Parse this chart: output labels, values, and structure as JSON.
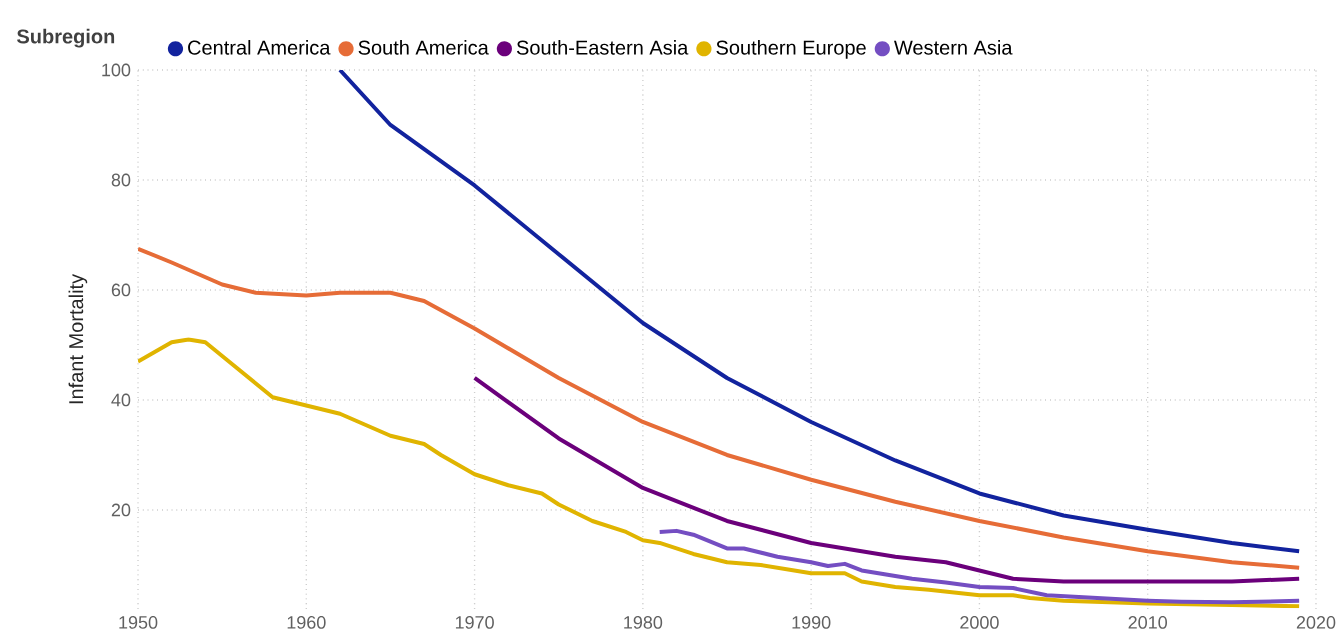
{
  "chart_data": {
    "type": "line",
    "ylabel": "Infant Mortality",
    "legend_title": "Subregion",
    "legend": "top left",
    "grid": true,
    "line_style": "solid",
    "xlim": [
      1950,
      2020
    ],
    "xticks": [
      1950,
      1960,
      1970,
      1980,
      1990,
      2000,
      2010,
      2020
    ],
    "ylim": [
      2,
      100
    ],
    "yticks": [
      20,
      40,
      60,
      80,
      100
    ],
    "series": [
      {
        "name": "Central America",
        "color": "#12239e",
        "x": [
          1962,
          1965,
          1970,
          1975,
          1980,
          1985,
          1990,
          1995,
          2000,
          2005,
          2010,
          2015,
          2019
        ],
        "values": [
          100,
          90,
          79,
          66.5,
          54,
          44,
          36,
          29,
          23,
          19,
          16.4,
          14,
          12.5
        ]
      },
      {
        "name": "South America",
        "color": "#e66c37",
        "x": [
          1950,
          1952,
          1955,
          1957,
          1960,
          1962,
          1965,
          1967,
          1970,
          1975,
          1980,
          1985,
          1990,
          1995,
          2000,
          2005,
          2010,
          2015,
          2019
        ],
        "values": [
          67.5,
          65,
          61,
          59.5,
          59,
          59.5,
          59.5,
          58,
          53,
          44,
          36,
          30,
          25.5,
          21.5,
          18,
          15,
          12.5,
          10.5,
          9.5
        ]
      },
      {
        "name": "South-Eastern Asia",
        "color": "#6b007b",
        "x": [
          1970,
          1975,
          1980,
          1985,
          1990,
          1995,
          1998,
          2000,
          2002,
          2005,
          2010,
          2015,
          2019
        ],
        "values": [
          44,
          33,
          24,
          18,
          14,
          11.5,
          10.5,
          9,
          7.5,
          7,
          7,
          7,
          7.5
        ]
      },
      {
        "name": "Southern Europe",
        "color": "#e0b400",
        "x": [
          1950,
          1952,
          1953,
          1954,
          1955,
          1957,
          1958,
          1960,
          1962,
          1965,
          1967,
          1968,
          1970,
          1972,
          1974,
          1975,
          1977,
          1979,
          1980,
          1981,
          1983,
          1985,
          1987,
          1989,
          1990,
          1992,
          1993,
          1995,
          1997,
          2000,
          2002,
          2003,
          2005,
          2010,
          2015,
          2019
        ],
        "values": [
          47,
          50.5,
          51,
          50.5,
          48,
          43,
          40.5,
          39,
          37.5,
          33.5,
          32,
          30,
          26.5,
          24.5,
          23,
          21,
          18,
          16,
          14.5,
          14,
          12,
          10.5,
          10,
          9,
          8.5,
          8.5,
          7,
          6,
          5.5,
          4.5,
          4.5,
          4,
          3.5,
          3,
          2.7,
          2.5
        ]
      },
      {
        "name": "Western Asia",
        "color": "#744ec2",
        "x": [
          1981,
          1982,
          1983,
          1985,
          1986,
          1988,
          1990,
          1991,
          1992,
          1993,
          1995,
          1996,
          1998,
          2000,
          2002,
          2004,
          2007,
          2010,
          2012,
          2015,
          2019
        ],
        "values": [
          16,
          16.2,
          15.5,
          13,
          13,
          11.5,
          10.5,
          9.8,
          10.2,
          9,
          8,
          7.5,
          6.8,
          6,
          5.8,
          4.5,
          4,
          3.5,
          3.3,
          3.2,
          3.5
        ]
      }
    ]
  }
}
